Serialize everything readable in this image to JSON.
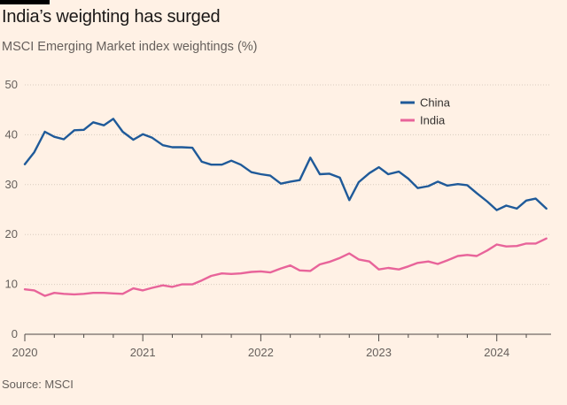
{
  "title": "India’s weighting has surged",
  "subtitle": "MSCI Emerging Market index weightings (%)",
  "source": "Source: MSCI",
  "colors": {
    "china": "#1f5a99",
    "india": "#e8649a",
    "grid": "#d8cbbe",
    "axis": "#4d4845"
  },
  "chart_data": {
    "type": "line",
    "title": "India’s weighting has surged",
    "subtitle": "MSCI Emerging Market index weightings (%)",
    "xlabel": "",
    "ylabel": "",
    "ylim": [
      0,
      50
    ],
    "yticks": [
      0,
      10,
      20,
      30,
      40,
      50
    ],
    "xlim": [
      2020.0,
      2024.46
    ],
    "xticks": [
      2020,
      2021,
      2022,
      2023,
      2024
    ],
    "xtick_labels": [
      "2020",
      "2021",
      "2022",
      "2023",
      "2024"
    ],
    "grid": true,
    "legend_position": "top-right",
    "series": [
      {
        "name": "China",
        "color": "#1f5a99",
        "points": [
          [
            2020.0,
            34.1
          ],
          [
            2020.08,
            36.5
          ],
          [
            2020.17,
            40.6
          ],
          [
            2020.25,
            39.6
          ],
          [
            2020.33,
            39.1
          ],
          [
            2020.42,
            40.9
          ],
          [
            2020.5,
            41.0
          ],
          [
            2020.58,
            42.5
          ],
          [
            2020.67,
            41.9
          ],
          [
            2020.75,
            43.2
          ],
          [
            2020.83,
            40.6
          ],
          [
            2020.92,
            39.0
          ],
          [
            2021.0,
            40.1
          ],
          [
            2021.08,
            39.4
          ],
          [
            2021.17,
            37.9
          ],
          [
            2021.25,
            37.5
          ],
          [
            2021.33,
            37.5
          ],
          [
            2021.42,
            37.4
          ],
          [
            2021.5,
            34.6
          ],
          [
            2021.58,
            34.0
          ],
          [
            2021.67,
            34.0
          ],
          [
            2021.75,
            34.8
          ],
          [
            2021.83,
            34.0
          ],
          [
            2021.92,
            32.5
          ],
          [
            2022.0,
            32.1
          ],
          [
            2022.08,
            31.8
          ],
          [
            2022.17,
            30.2
          ],
          [
            2022.25,
            30.6
          ],
          [
            2022.33,
            30.9
          ],
          [
            2022.42,
            35.4
          ],
          [
            2022.5,
            32.1
          ],
          [
            2022.58,
            32.2
          ],
          [
            2022.67,
            31.4
          ],
          [
            2022.75,
            26.9
          ],
          [
            2022.83,
            30.5
          ],
          [
            2022.92,
            32.3
          ],
          [
            2023.0,
            33.5
          ],
          [
            2023.08,
            32.1
          ],
          [
            2023.17,
            32.6
          ],
          [
            2023.25,
            31.2
          ],
          [
            2023.33,
            29.3
          ],
          [
            2023.42,
            29.7
          ],
          [
            2023.5,
            30.6
          ],
          [
            2023.58,
            29.8
          ],
          [
            2023.67,
            30.1
          ],
          [
            2023.75,
            29.9
          ],
          [
            2023.83,
            28.3
          ],
          [
            2023.92,
            26.6
          ],
          [
            2024.0,
            24.9
          ],
          [
            2024.08,
            25.8
          ],
          [
            2024.17,
            25.2
          ],
          [
            2024.25,
            26.8
          ],
          [
            2024.33,
            27.2
          ],
          [
            2024.42,
            25.2
          ]
        ]
      },
      {
        "name": "India",
        "color": "#e8649a",
        "points": [
          [
            2020.0,
            9.0
          ],
          [
            2020.08,
            8.8
          ],
          [
            2020.17,
            7.7
          ],
          [
            2020.25,
            8.3
          ],
          [
            2020.33,
            8.1
          ],
          [
            2020.42,
            8.0
          ],
          [
            2020.5,
            8.1
          ],
          [
            2020.58,
            8.3
          ],
          [
            2020.67,
            8.3
          ],
          [
            2020.75,
            8.2
          ],
          [
            2020.83,
            8.1
          ],
          [
            2020.92,
            9.2
          ],
          [
            2021.0,
            8.8
          ],
          [
            2021.08,
            9.3
          ],
          [
            2021.17,
            9.8
          ],
          [
            2021.25,
            9.5
          ],
          [
            2021.33,
            10.0
          ],
          [
            2021.42,
            10.0
          ],
          [
            2021.5,
            10.8
          ],
          [
            2021.58,
            11.7
          ],
          [
            2021.67,
            12.2
          ],
          [
            2021.75,
            12.1
          ],
          [
            2021.83,
            12.2
          ],
          [
            2021.92,
            12.5
          ],
          [
            2022.0,
            12.6
          ],
          [
            2022.08,
            12.4
          ],
          [
            2022.17,
            13.2
          ],
          [
            2022.25,
            13.8
          ],
          [
            2022.33,
            12.8
          ],
          [
            2022.42,
            12.7
          ],
          [
            2022.5,
            14.0
          ],
          [
            2022.58,
            14.5
          ],
          [
            2022.67,
            15.3
          ],
          [
            2022.75,
            16.2
          ],
          [
            2022.83,
            15.0
          ],
          [
            2022.92,
            14.6
          ],
          [
            2023.0,
            13.0
          ],
          [
            2023.08,
            13.3
          ],
          [
            2023.17,
            13.0
          ],
          [
            2023.25,
            13.6
          ],
          [
            2023.33,
            14.3
          ],
          [
            2023.42,
            14.6
          ],
          [
            2023.5,
            14.1
          ],
          [
            2023.58,
            14.8
          ],
          [
            2023.67,
            15.7
          ],
          [
            2023.75,
            15.9
          ],
          [
            2023.83,
            15.7
          ],
          [
            2023.92,
            16.8
          ],
          [
            2024.0,
            18.0
          ],
          [
            2024.08,
            17.6
          ],
          [
            2024.17,
            17.7
          ],
          [
            2024.25,
            18.2
          ],
          [
            2024.33,
            18.2
          ],
          [
            2024.42,
            19.2
          ]
        ]
      }
    ]
  }
}
